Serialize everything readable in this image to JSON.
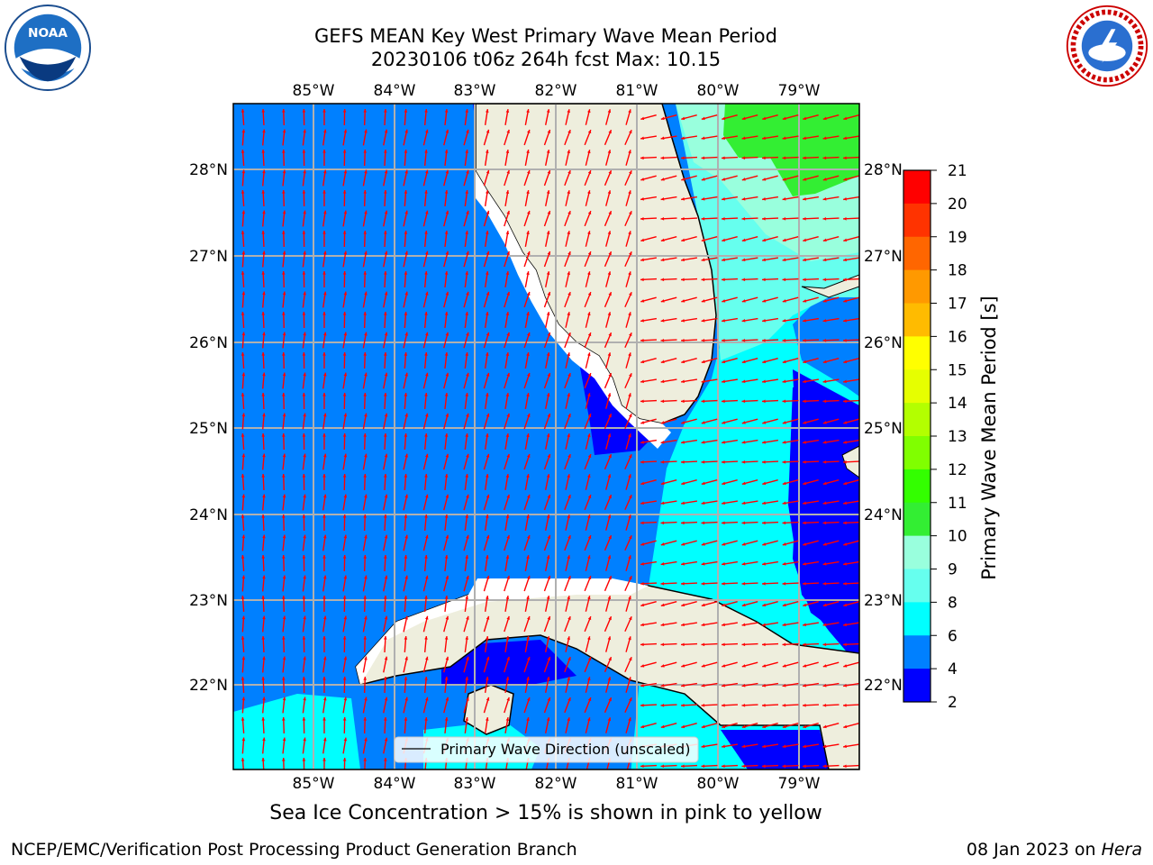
{
  "header": {
    "title_line1": "GEFS MEAN Key West Primary Wave Mean Period",
    "title_line2": "20230106 t06z 264h fcst   Max: 10.15"
  },
  "logos": {
    "left": "NOAA",
    "right_text": "NATIONAL WEATHER SERVICE"
  },
  "map": {
    "lon_labels": [
      "85°W",
      "84°W",
      "83°W",
      "82°W",
      "81°W",
      "80°W",
      "79°W"
    ],
    "lat_labels": [
      "28°N",
      "27°N",
      "26°N",
      "25°N",
      "24°N",
      "23°N",
      "22°N"
    ],
    "legend_label": "Primary Wave Direction (unscaled)"
  },
  "colorbar": {
    "label": "Primary Wave Mean Period [s]",
    "ticks": [
      "21",
      "20",
      "19",
      "18",
      "17",
      "16",
      "15",
      "14",
      "13",
      "12",
      "11",
      "10",
      "9",
      "8",
      "6",
      "4",
      "2"
    ],
    "colors": [
      "#ff0000",
      "#ff3300",
      "#ff6600",
      "#ff9900",
      "#ffbb00",
      "#ffff00",
      "#e6ff00",
      "#b3ff00",
      "#80ff00",
      "#33ff00",
      "#33ee33",
      "#99ffdd",
      "#66ffee",
      "#00ffff",
      "#0080ff",
      "#0000ff"
    ]
  },
  "ice_note": "Sea Ice Concentration > 15% is shown in pink to yellow",
  "footer": {
    "left": "NCEP/EMC/Verification Post Processing Product Generation Branch",
    "right_prefix": "08 Jan 2023 on ",
    "right_host": "Hera"
  }
}
